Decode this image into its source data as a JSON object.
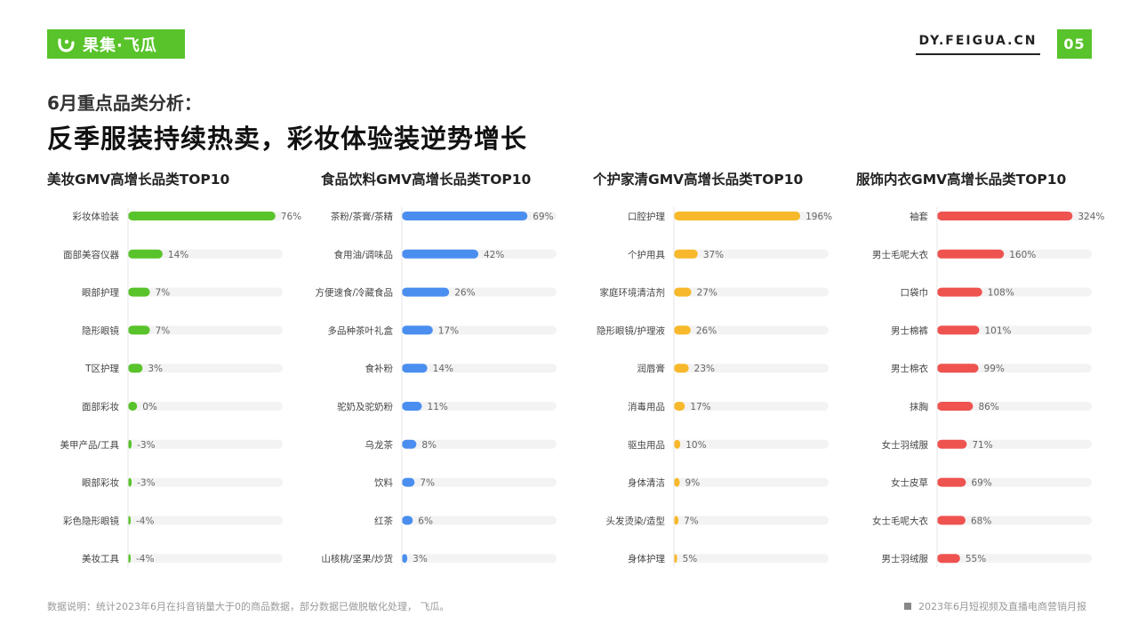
{
  "header": {
    "logo_text": "果集·飞瓜",
    "site": "DY.FEIGUA.CN",
    "page_number": "05",
    "subtitle": "6月重点品类分析：",
    "title": "反季服装持续热卖，彩妆体验装逆势增长"
  },
  "footer": {
    "note": "数据说明：统计2023年6月在抖音销量大于0的商品数据，部分数据已做脱敏化处理， 飞瓜。",
    "report": "2023年6月短视频及直播电商营销月报"
  },
  "colors": {
    "brand": "#58c32a",
    "track": "#f3f3f3"
  },
  "chart_data": [
    {
      "type": "bar",
      "orientation": "horizontal",
      "title": "美妆GMV高增长品类TOP10",
      "color": "#58c32a",
      "xlim": [
        -5,
        80
      ],
      "categories": [
        "彩妆体验装",
        "面部美容仪器",
        "眼部护理",
        "隐形眼镜",
        "T区护理",
        "面部彩妆",
        "美甲产品/工具",
        "眼部彩妆",
        "彩色隐形眼镜",
        "美妆工具"
      ],
      "values": [
        76,
        14,
        7,
        7,
        3,
        0,
        -3,
        -3,
        -4,
        -4
      ],
      "labels": [
        "76%",
        "14%",
        "7%",
        "7%",
        "3%",
        "0%",
        "-3%",
        "-3%",
        "-4%",
        "-4%"
      ]
    },
    {
      "type": "bar",
      "orientation": "horizontal",
      "title": "食品饮料GMV高增长品类TOP10",
      "color": "#4a8ef0",
      "xlim": [
        0,
        85
      ],
      "categories": [
        "茶粉/茶膏/茶精",
        "食用油/调味品",
        "方便速食/冷藏食品",
        "多品种茶叶礼盒",
        "食补粉",
        "驼奶及驼奶粉",
        "乌龙茶",
        "饮料",
        "红茶",
        "山核桃/坚果/炒货"
      ],
      "values": [
        69,
        42,
        26,
        17,
        14,
        11,
        8,
        7,
        6,
        3
      ],
      "labels": [
        "69%",
        "42%",
        "26%",
        "17%",
        "14%",
        "11%",
        "8%",
        "7%",
        "6%",
        "3%"
      ]
    },
    {
      "type": "bar",
      "orientation": "horizontal",
      "title": "个护家清GMV高增长品类TOP10",
      "color": "#f7b92b",
      "xlim": [
        0,
        240
      ],
      "categories": [
        "口腔护理",
        "个护用具",
        "家庭环境清洁剂",
        "隐形眼镜/护理液",
        "润唇膏",
        "消毒用品",
        "驱虫用品",
        "身体清洁",
        "头发烫染/造型",
        "身体护理"
      ],
      "values": [
        196,
        37,
        27,
        26,
        23,
        17,
        10,
        9,
        7,
        5
      ],
      "labels": [
        "196%",
        "37%",
        "27%",
        "26%",
        "23%",
        "17%",
        "10%",
        "9%",
        "7%",
        "5%"
      ]
    },
    {
      "type": "bar",
      "orientation": "horizontal",
      "title": "服饰内衣GMV高增长品类TOP10",
      "color": "#ee5350",
      "xlim": [
        0,
        370
      ],
      "categories": [
        "袖套",
        "男士毛呢大衣",
        "口袋巾",
        "男士棉裤",
        "男士棉衣",
        "抹胸",
        "女士羽绒服",
        "女士皮草",
        "女士毛呢大衣",
        "男士羽绒服"
      ],
      "values": [
        324,
        160,
        108,
        101,
        99,
        86,
        71,
        69,
        68,
        55
      ],
      "labels": [
        "324%",
        "160%",
        "108%",
        "101%",
        "99%",
        "86%",
        "71%",
        "69%",
        "68%",
        "55%"
      ]
    }
  ]
}
